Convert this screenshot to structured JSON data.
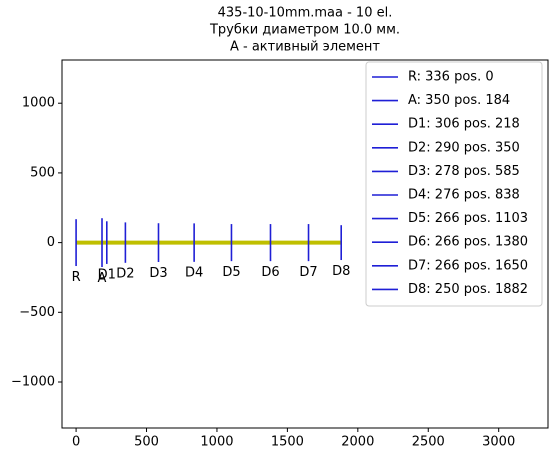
{
  "chart_data": {
    "type": "antenna",
    "title": [
      "435-10-10mm.maa - 10 el.",
      "Трубки диаметром 10.0 мм.",
      "A - активный элемент"
    ],
    "element_color": "#1f1fd6",
    "boom": {
      "x": [
        0,
        1882
      ],
      "color": "#bfbf00"
    },
    "elements": [
      {
        "name": "R: 336 pos. 0",
        "label": "R",
        "length": 336,
        "pos": 0
      },
      {
        "name": "A: 350 pos. 184",
        "label": "A",
        "length": 350,
        "pos": 184
      },
      {
        "name": "D1: 306 pos. 218",
        "label": "D1",
        "length": 306,
        "pos": 218
      },
      {
        "name": "D2: 290 pos. 350",
        "label": "D2",
        "length": 290,
        "pos": 350
      },
      {
        "name": "D3: 278 pos. 585",
        "label": "D3",
        "length": 278,
        "pos": 585
      },
      {
        "name": "D4: 276 pos. 838",
        "label": "D4",
        "length": 276,
        "pos": 838
      },
      {
        "name": "D5: 266 pos. 1103",
        "label": "D5",
        "length": 266,
        "pos": 1103
      },
      {
        "name": "D6: 266 pos. 1380",
        "label": "D6",
        "length": 266,
        "pos": 1380
      },
      {
        "name": "D7: 266 pos. 1650",
        "label": "D7",
        "length": 266,
        "pos": 1650
      },
      {
        "name": "D8: 250 pos. 1882",
        "label": "D8",
        "length": 250,
        "pos": 1882
      }
    ],
    "xlim": [
      -100,
      3350
    ],
    "xticks": [
      0,
      500,
      1000,
      1500,
      2000,
      2500,
      3000
    ],
    "ylim": [
      -1330,
      1310
    ],
    "yticks": [
      {
        "value": -1000,
        "label": "−1000"
      },
      {
        "value": -500,
        "label": "−500"
      },
      0,
      500,
      1000
    ],
    "legend": "upper right"
  }
}
